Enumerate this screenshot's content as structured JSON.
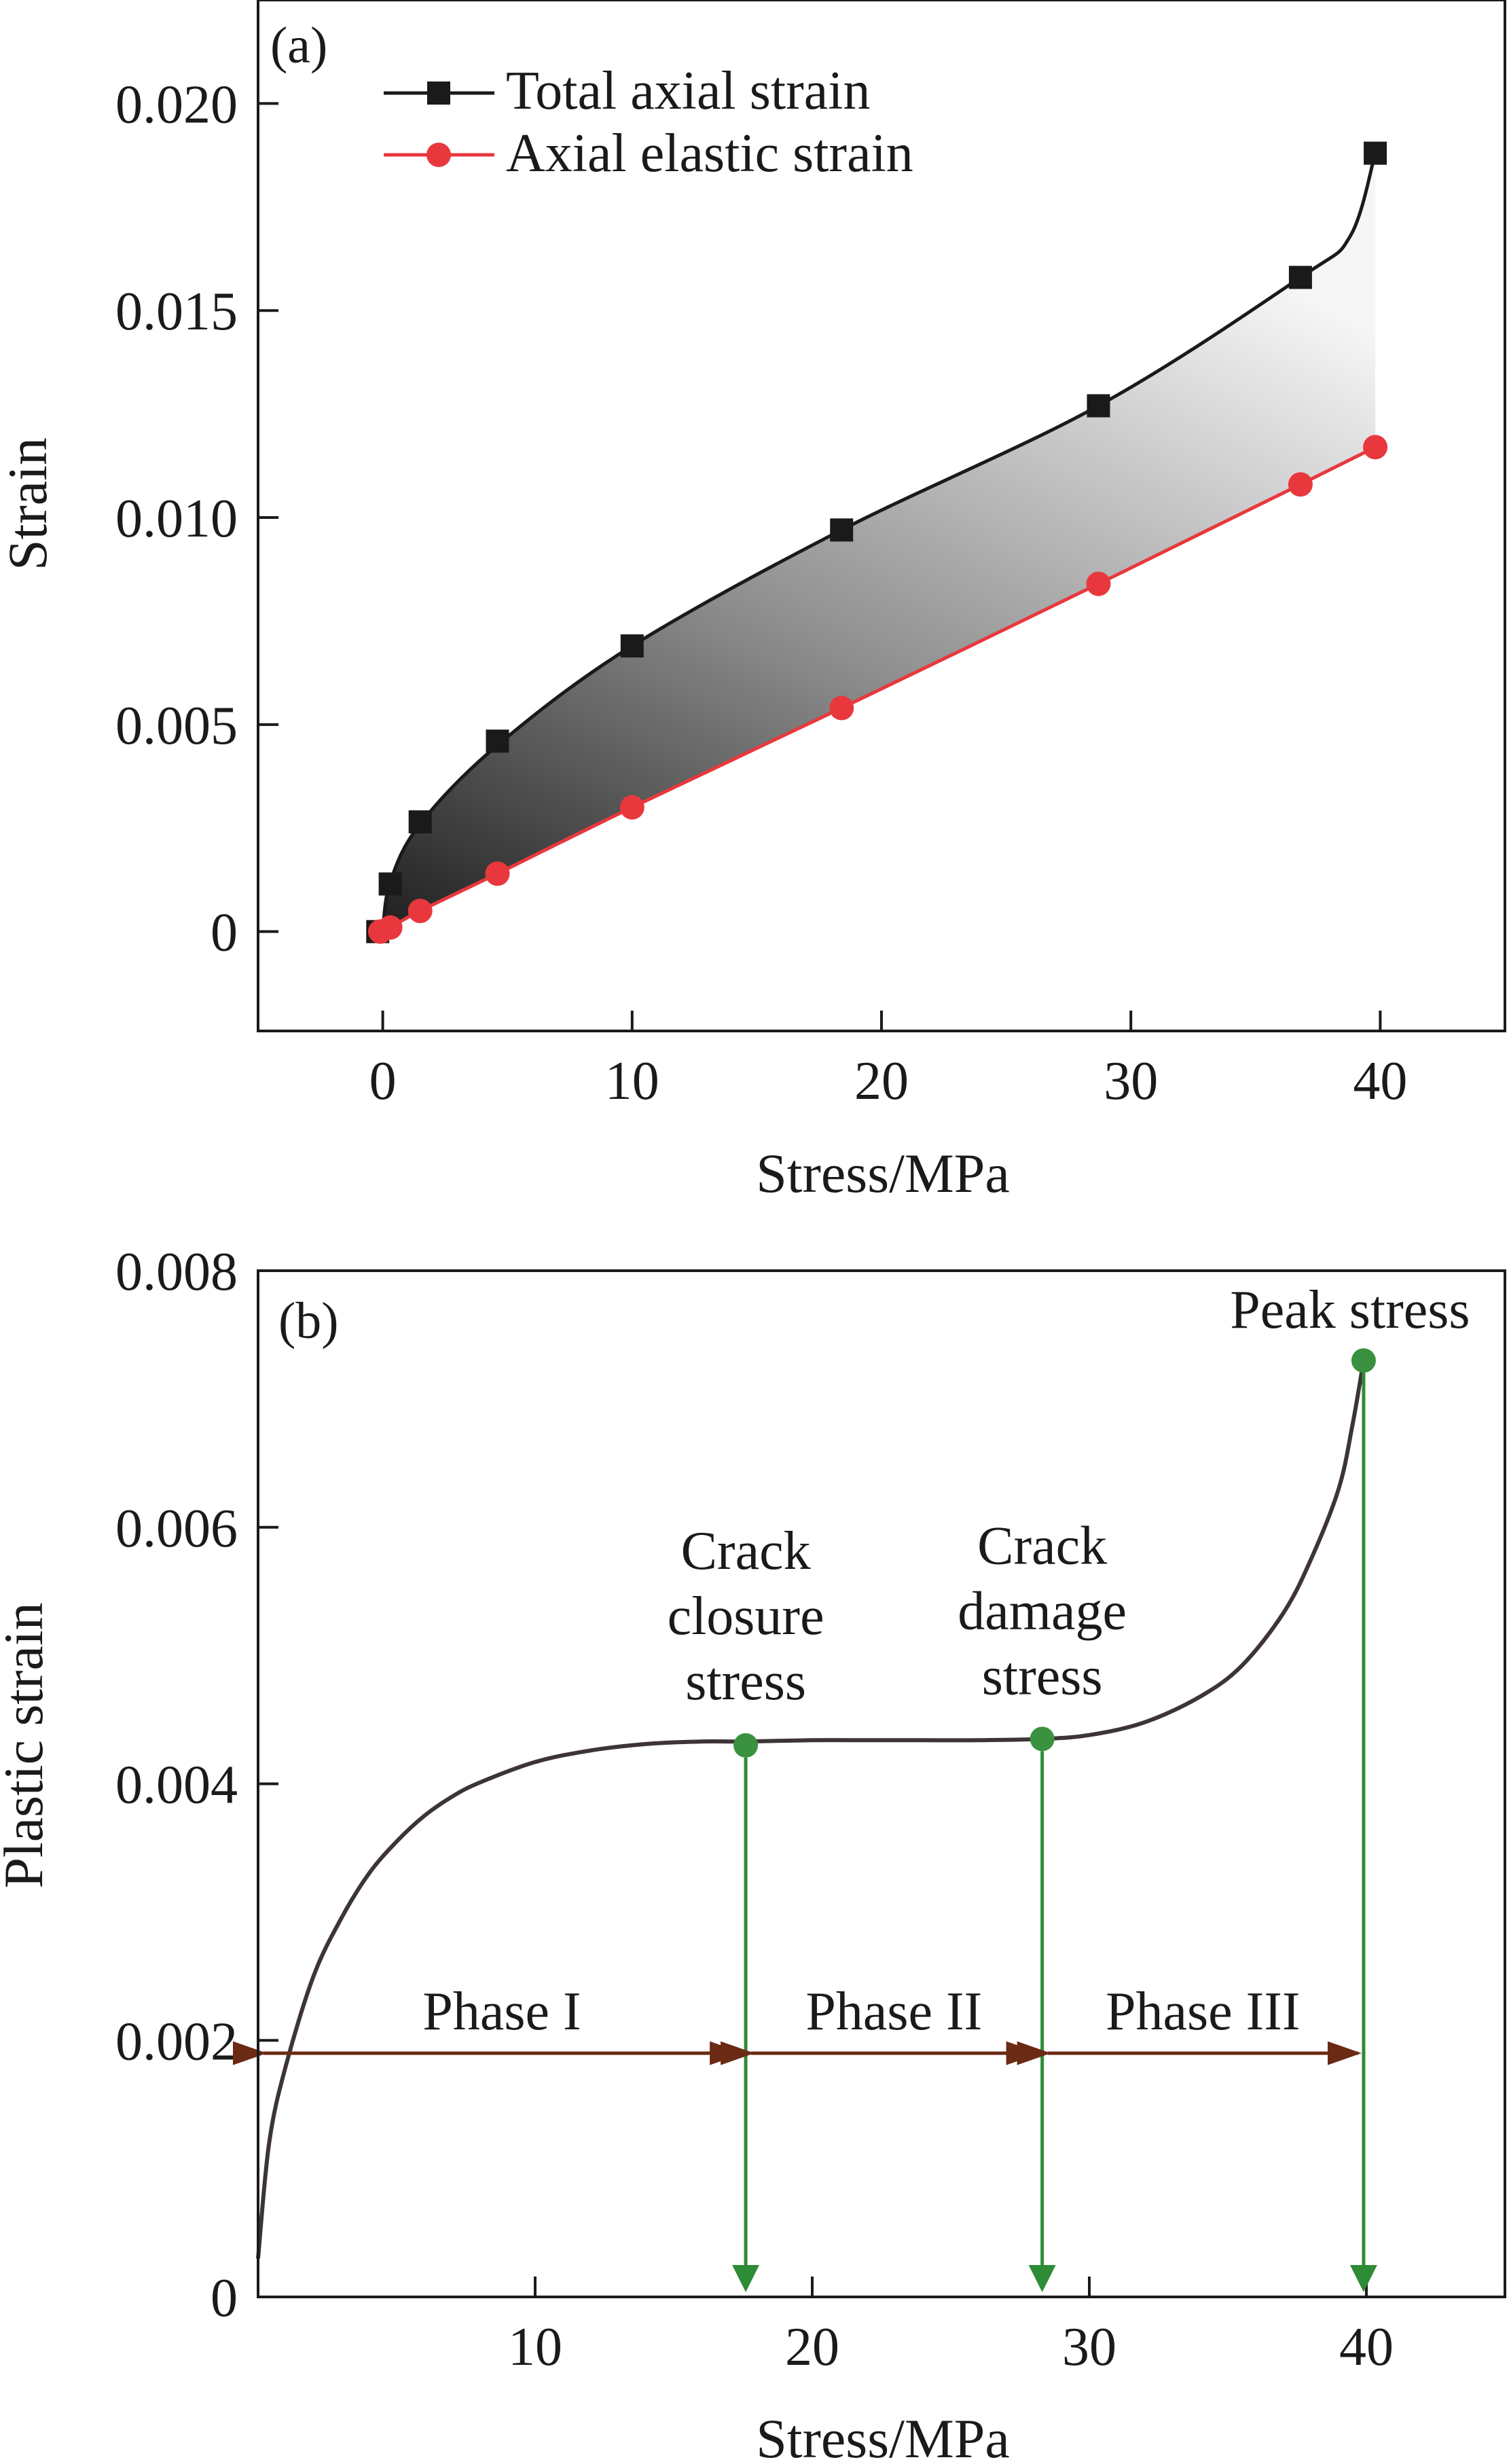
{
  "colors": {
    "total": "#1a1a1a",
    "elastic": "#e8383d",
    "plastic_curve": "#3d3535",
    "phase_arrow": "#6b2a14",
    "markers": "#2e8b36",
    "marker_dot": "#3a9140",
    "axis": "#1a1a1a"
  },
  "chart_data": [
    {
      "type": "line",
      "panel_label": "(a)",
      "xlabel": "Stress/MPa",
      "ylabel": "Strain",
      "xlim": [
        -5,
        45
      ],
      "ylim": [
        -0.0024,
        0.0225
      ],
      "xticks": [
        0,
        10,
        20,
        30,
        40
      ],
      "yticks": [
        0,
        0.005,
        0.01,
        0.015,
        0.02
      ],
      "ytick_labels": [
        "0",
        "0.005",
        "0.010",
        "0.015",
        "0.020"
      ],
      "legend_position": "top-left",
      "shaded_between_series": true,
      "series": [
        {
          "name": "Total axial strain",
          "marker": "square",
          "x": [
            -0.2,
            0.3,
            1.5,
            4.6,
            10.0,
            18.4,
            28.7,
            36.8,
            39.8
          ],
          "y": [
            0.0,
            0.00115,
            0.00265,
            0.0046,
            0.0069,
            0.0097,
            0.0127,
            0.0158,
            0.0188
          ],
          "curve_x": [
            0.0,
            0.3,
            1.5,
            4.6,
            10.0,
            18.4,
            28.7,
            36.8,
            38.8,
            39.8
          ],
          "curve_y": [
            0.0,
            0.0012,
            0.0026,
            0.0045,
            0.0069,
            0.0097,
            0.0127,
            0.0158,
            0.0168,
            0.0188
          ]
        },
        {
          "name": "Axial elastic strain",
          "marker": "circle",
          "x": [
            -0.1,
            0.3,
            1.5,
            4.6,
            10.0,
            18.4,
            28.7,
            36.8,
            39.8
          ],
          "y": [
            0.0,
            0.0001,
            0.0005,
            0.0014,
            0.003,
            0.0054,
            0.0084,
            0.0108,
            0.0117
          ],
          "curve_x": [
            0.0,
            0.3,
            1.5,
            4.6,
            10.0,
            18.4,
            28.7,
            36.8,
            39.8
          ],
          "curve_y": [
            0.0,
            0.0001,
            0.0005,
            0.0014,
            0.003,
            0.0054,
            0.0084,
            0.0108,
            0.0117
          ]
        }
      ]
    },
    {
      "type": "line",
      "panel_label": "(b)",
      "xlabel": "Stress/MPa",
      "ylabel": "Plastic strain",
      "xlim": [
        0,
        45
      ],
      "ylim": [
        0,
        0.008
      ],
      "xticks": [
        10,
        20,
        30,
        40
      ],
      "yticks": [
        0,
        0.002,
        0.004,
        0.006,
        0.008
      ],
      "ytick_labels": [
        "0",
        "0.002",
        "0.004",
        "0.006",
        "0.008"
      ],
      "series": [
        {
          "name": "Plastic strain",
          "x": [
            0.0,
            0.4,
            1.0,
            2.0,
            3.0,
            4.0,
            5.0,
            6.0,
            7.0,
            8.0,
            10.0,
            12.0,
            14.0,
            16.0,
            17.6,
            20.0,
            22.0,
            24.0,
            26.0,
            28.3,
            30.0,
            32.0,
            34.0,
            35.5,
            37.0,
            38.0,
            39.0,
            39.5,
            39.9
          ],
          "y": [
            0.0003,
            0.0012,
            0.0018,
            0.0025,
            0.00295,
            0.0033,
            0.00355,
            0.00375,
            0.0039,
            0.00401,
            0.00417,
            0.00426,
            0.00431,
            0.00433,
            0.00433,
            0.00434,
            0.00434,
            0.00434,
            0.00434,
            0.00435,
            0.00438,
            0.00448,
            0.00468,
            0.00492,
            0.00533,
            0.00575,
            0.0063,
            0.0068,
            0.0073
          ]
        }
      ],
      "key_points": [
        {
          "label_lines": [
            "Crack",
            "closure",
            "stress"
          ],
          "x": 17.6,
          "y": 0.0043
        },
        {
          "label_lines": [
            "Crack",
            "damage",
            "stress"
          ],
          "x": 28.3,
          "y": 0.00435
        },
        {
          "label_lines": [
            "Peak stress"
          ],
          "x": 39.9,
          "y": 0.0073
        }
      ],
      "phases": [
        {
          "label": "Phase I",
          "x_from": 0,
          "x_to": 17.6,
          "y": 0.0019
        },
        {
          "label": "Phase II",
          "x_from": 17.6,
          "x_to": 28.3,
          "y": 0.0019
        },
        {
          "label": "Phase III",
          "x_from": 28.3,
          "x_to": 39.9,
          "y": 0.0019
        }
      ]
    }
  ]
}
